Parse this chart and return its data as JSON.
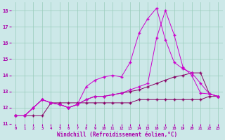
{
  "xlabel": "Windchill (Refroidissement éolien,°C)",
  "bg_color": "#cce8e8",
  "grid_color": "#99ccbb",
  "line_color": "#aa00aa",
  "ylim": [
    11,
    18.5
  ],
  "xlim": [
    -0.5,
    23.5
  ],
  "yticks": [
    11,
    12,
    13,
    14,
    15,
    16,
    17,
    18
  ],
  "xticks": [
    0,
    1,
    2,
    3,
    4,
    5,
    6,
    7,
    8,
    9,
    10,
    11,
    12,
    13,
    14,
    15,
    16,
    17,
    18,
    19,
    20,
    21,
    22,
    23
  ],
  "series1": [
    11.5,
    11.5,
    12.0,
    12.5,
    12.3,
    12.2,
    12.0,
    12.2,
    13.3,
    13.7,
    13.9,
    14.0,
    13.9,
    14.8,
    16.6,
    17.5,
    18.15,
    16.2,
    14.8,
    14.4,
    14.15,
    13.5,
    12.85,
    12.7
  ],
  "series2": [
    11.5,
    11.5,
    12.0,
    12.5,
    12.3,
    12.2,
    12.0,
    12.2,
    12.5,
    12.7,
    12.7,
    12.8,
    12.9,
    13.0,
    13.1,
    13.3,
    13.5,
    13.7,
    13.9,
    14.0,
    14.15,
    14.15,
    12.85,
    12.7
  ],
  "series3": [
    11.5,
    11.5,
    12.0,
    12.5,
    12.3,
    12.2,
    12.0,
    12.2,
    12.5,
    12.7,
    12.7,
    12.8,
    12.9,
    13.1,
    13.3,
    13.5,
    16.3,
    18.0,
    16.5,
    14.5,
    14.0,
    12.9,
    12.85,
    12.7
  ],
  "series4": [
    11.5,
    11.5,
    11.5,
    11.5,
    12.3,
    12.3,
    12.3,
    12.3,
    12.3,
    12.3,
    12.3,
    12.3,
    12.3,
    12.3,
    12.5,
    12.5,
    12.5,
    12.5,
    12.5,
    12.5,
    12.5,
    12.5,
    12.7,
    12.7
  ],
  "color1": "#cc00cc",
  "color2": "#880066",
  "lw": 0.7,
  "ms": 2.5
}
